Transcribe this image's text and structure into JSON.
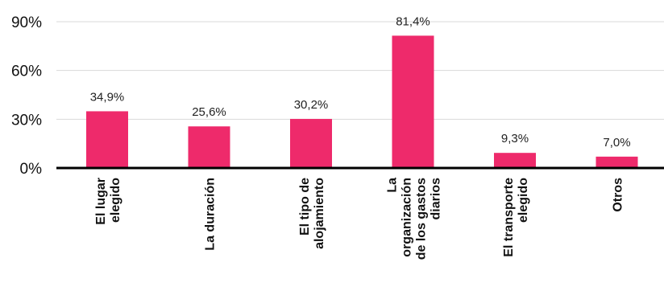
{
  "chart_data": {
    "type": "bar",
    "categories": [
      [
        "El lugar",
        "elegido"
      ],
      [
        "La duración"
      ],
      [
        "El tipo de",
        "alojamiento"
      ],
      [
        "La",
        "organización",
        "de los gastos",
        "diarios"
      ],
      [
        "El transporte",
        "elegido"
      ],
      [
        "Otros"
      ]
    ],
    "values": [
      34.9,
      25.6,
      30.2,
      81.4,
      9.3,
      7.0
    ],
    "data_labels": [
      "34,9%",
      "25,6%",
      "30,2%",
      "81,4%",
      "9,3%",
      "7,0%"
    ],
    "yticks": [
      0,
      30,
      60,
      90
    ],
    "ytick_labels": [
      "0%",
      "30%",
      "60%",
      "90%"
    ],
    "ylim": [
      0,
      90
    ],
    "grid": true,
    "bar_color": "#ee2a6b",
    "grid_color": "#d9d9d9",
    "axis_color": "#000000",
    "title": "",
    "xlabel": "",
    "ylabel": ""
  }
}
